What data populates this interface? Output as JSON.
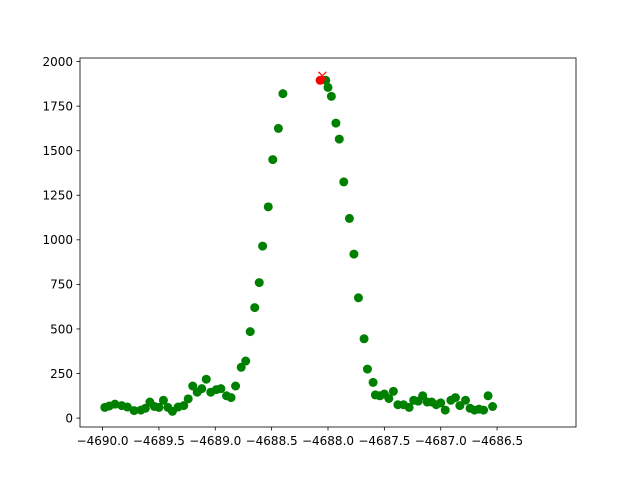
{
  "chart_data": {
    "type": "scatter",
    "title": "",
    "xlabel": "",
    "ylabel": "",
    "xlim": [
      -4690.2,
      -4685.8
    ],
    "ylim": [
      -50,
      2020
    ],
    "grid": false,
    "x_ticks": [
      -4690.0,
      -4689.5,
      -4689.0,
      -4688.5,
      -4688.0,
      -4687.5,
      -4687.0,
      -4686.5
    ],
    "x_tick_labels": [
      "−4690.0",
      "−4689.5",
      "−4689.0",
      "−4688.5",
      "−4688.0",
      "−4687.5",
      "−4687.0",
      "−4686.5"
    ],
    "y_ticks": [
      0,
      250,
      500,
      750,
      1000,
      1250,
      1500,
      1750,
      2000
    ],
    "y_tick_labels": [
      "0",
      "250",
      "500",
      "750",
      "1000",
      "1250",
      "1500",
      "1750",
      "2000"
    ],
    "series": [
      {
        "marker": "circle",
        "color": "#008000",
        "points": [
          [
            -4689.98,
            60
          ],
          [
            -4689.94,
            68
          ],
          [
            -4689.89,
            78
          ],
          [
            -4689.83,
            70
          ],
          [
            -4689.78,
            62
          ],
          [
            -4689.72,
            42
          ],
          [
            -4689.66,
            45
          ],
          [
            -4689.62,
            55
          ],
          [
            -4689.58,
            90
          ],
          [
            -4689.54,
            65
          ],
          [
            -4689.5,
            60
          ],
          [
            -4689.46,
            100
          ],
          [
            -4689.42,
            60
          ],
          [
            -4689.38,
            38
          ],
          [
            -4689.33,
            62
          ],
          [
            -4689.28,
            70
          ],
          [
            -4689.24,
            108
          ],
          [
            -4689.2,
            180
          ],
          [
            -4689.16,
            145
          ],
          [
            -4689.12,
            165
          ],
          [
            -4689.08,
            218
          ],
          [
            -4689.04,
            145
          ],
          [
            -4688.99,
            160
          ],
          [
            -4688.95,
            165
          ],
          [
            -4688.9,
            125
          ],
          [
            -4688.86,
            115
          ],
          [
            -4688.82,
            180
          ],
          [
            -4688.77,
            285
          ],
          [
            -4688.73,
            320
          ],
          [
            -4688.69,
            485
          ],
          [
            -4688.65,
            620
          ],
          [
            -4688.61,
            760
          ],
          [
            -4688.58,
            965
          ],
          [
            -4688.53,
            1185
          ],
          [
            -4688.49,
            1450
          ],
          [
            -4688.44,
            1625
          ],
          [
            -4688.4,
            1820
          ],
          [
            -4688.02,
            1895
          ],
          [
            -4688.0,
            1855
          ],
          [
            -4687.97,
            1805
          ],
          [
            -4687.93,
            1655
          ],
          [
            -4687.9,
            1565
          ],
          [
            -4687.86,
            1325
          ],
          [
            -4687.81,
            1120
          ],
          [
            -4687.77,
            920
          ],
          [
            -4687.73,
            675
          ],
          [
            -4687.68,
            445
          ],
          [
            -4687.65,
            275
          ],
          [
            -4687.6,
            200
          ],
          [
            -4687.58,
            130
          ],
          [
            -4687.54,
            125
          ],
          [
            -4687.5,
            135
          ],
          [
            -4687.46,
            110
          ],
          [
            -4687.42,
            150
          ],
          [
            -4687.38,
            75
          ],
          [
            -4687.33,
            75
          ],
          [
            -4687.28,
            60
          ],
          [
            -4687.24,
            100
          ],
          [
            -4687.2,
            95
          ],
          [
            -4687.16,
            125
          ],
          [
            -4687.12,
            90
          ],
          [
            -4687.08,
            90
          ],
          [
            -4687.04,
            75
          ],
          [
            -4687.0,
            85
          ],
          [
            -4686.96,
            45
          ],
          [
            -4686.91,
            100
          ],
          [
            -4686.87,
            115
          ],
          [
            -4686.83,
            70
          ],
          [
            -4686.78,
            100
          ],
          [
            -4686.74,
            55
          ],
          [
            -4686.7,
            45
          ],
          [
            -4686.66,
            50
          ],
          [
            -4686.62,
            45
          ],
          [
            -4686.58,
            125
          ],
          [
            -4686.54,
            65
          ]
        ]
      },
      {
        "marker": "circle",
        "color": "#ff0000",
        "points": [
          [
            -4688.07,
            1895
          ]
        ]
      },
      {
        "marker": "x",
        "color": "#ff0000",
        "points": [
          [
            -4688.05,
            1920
          ]
        ]
      }
    ]
  }
}
